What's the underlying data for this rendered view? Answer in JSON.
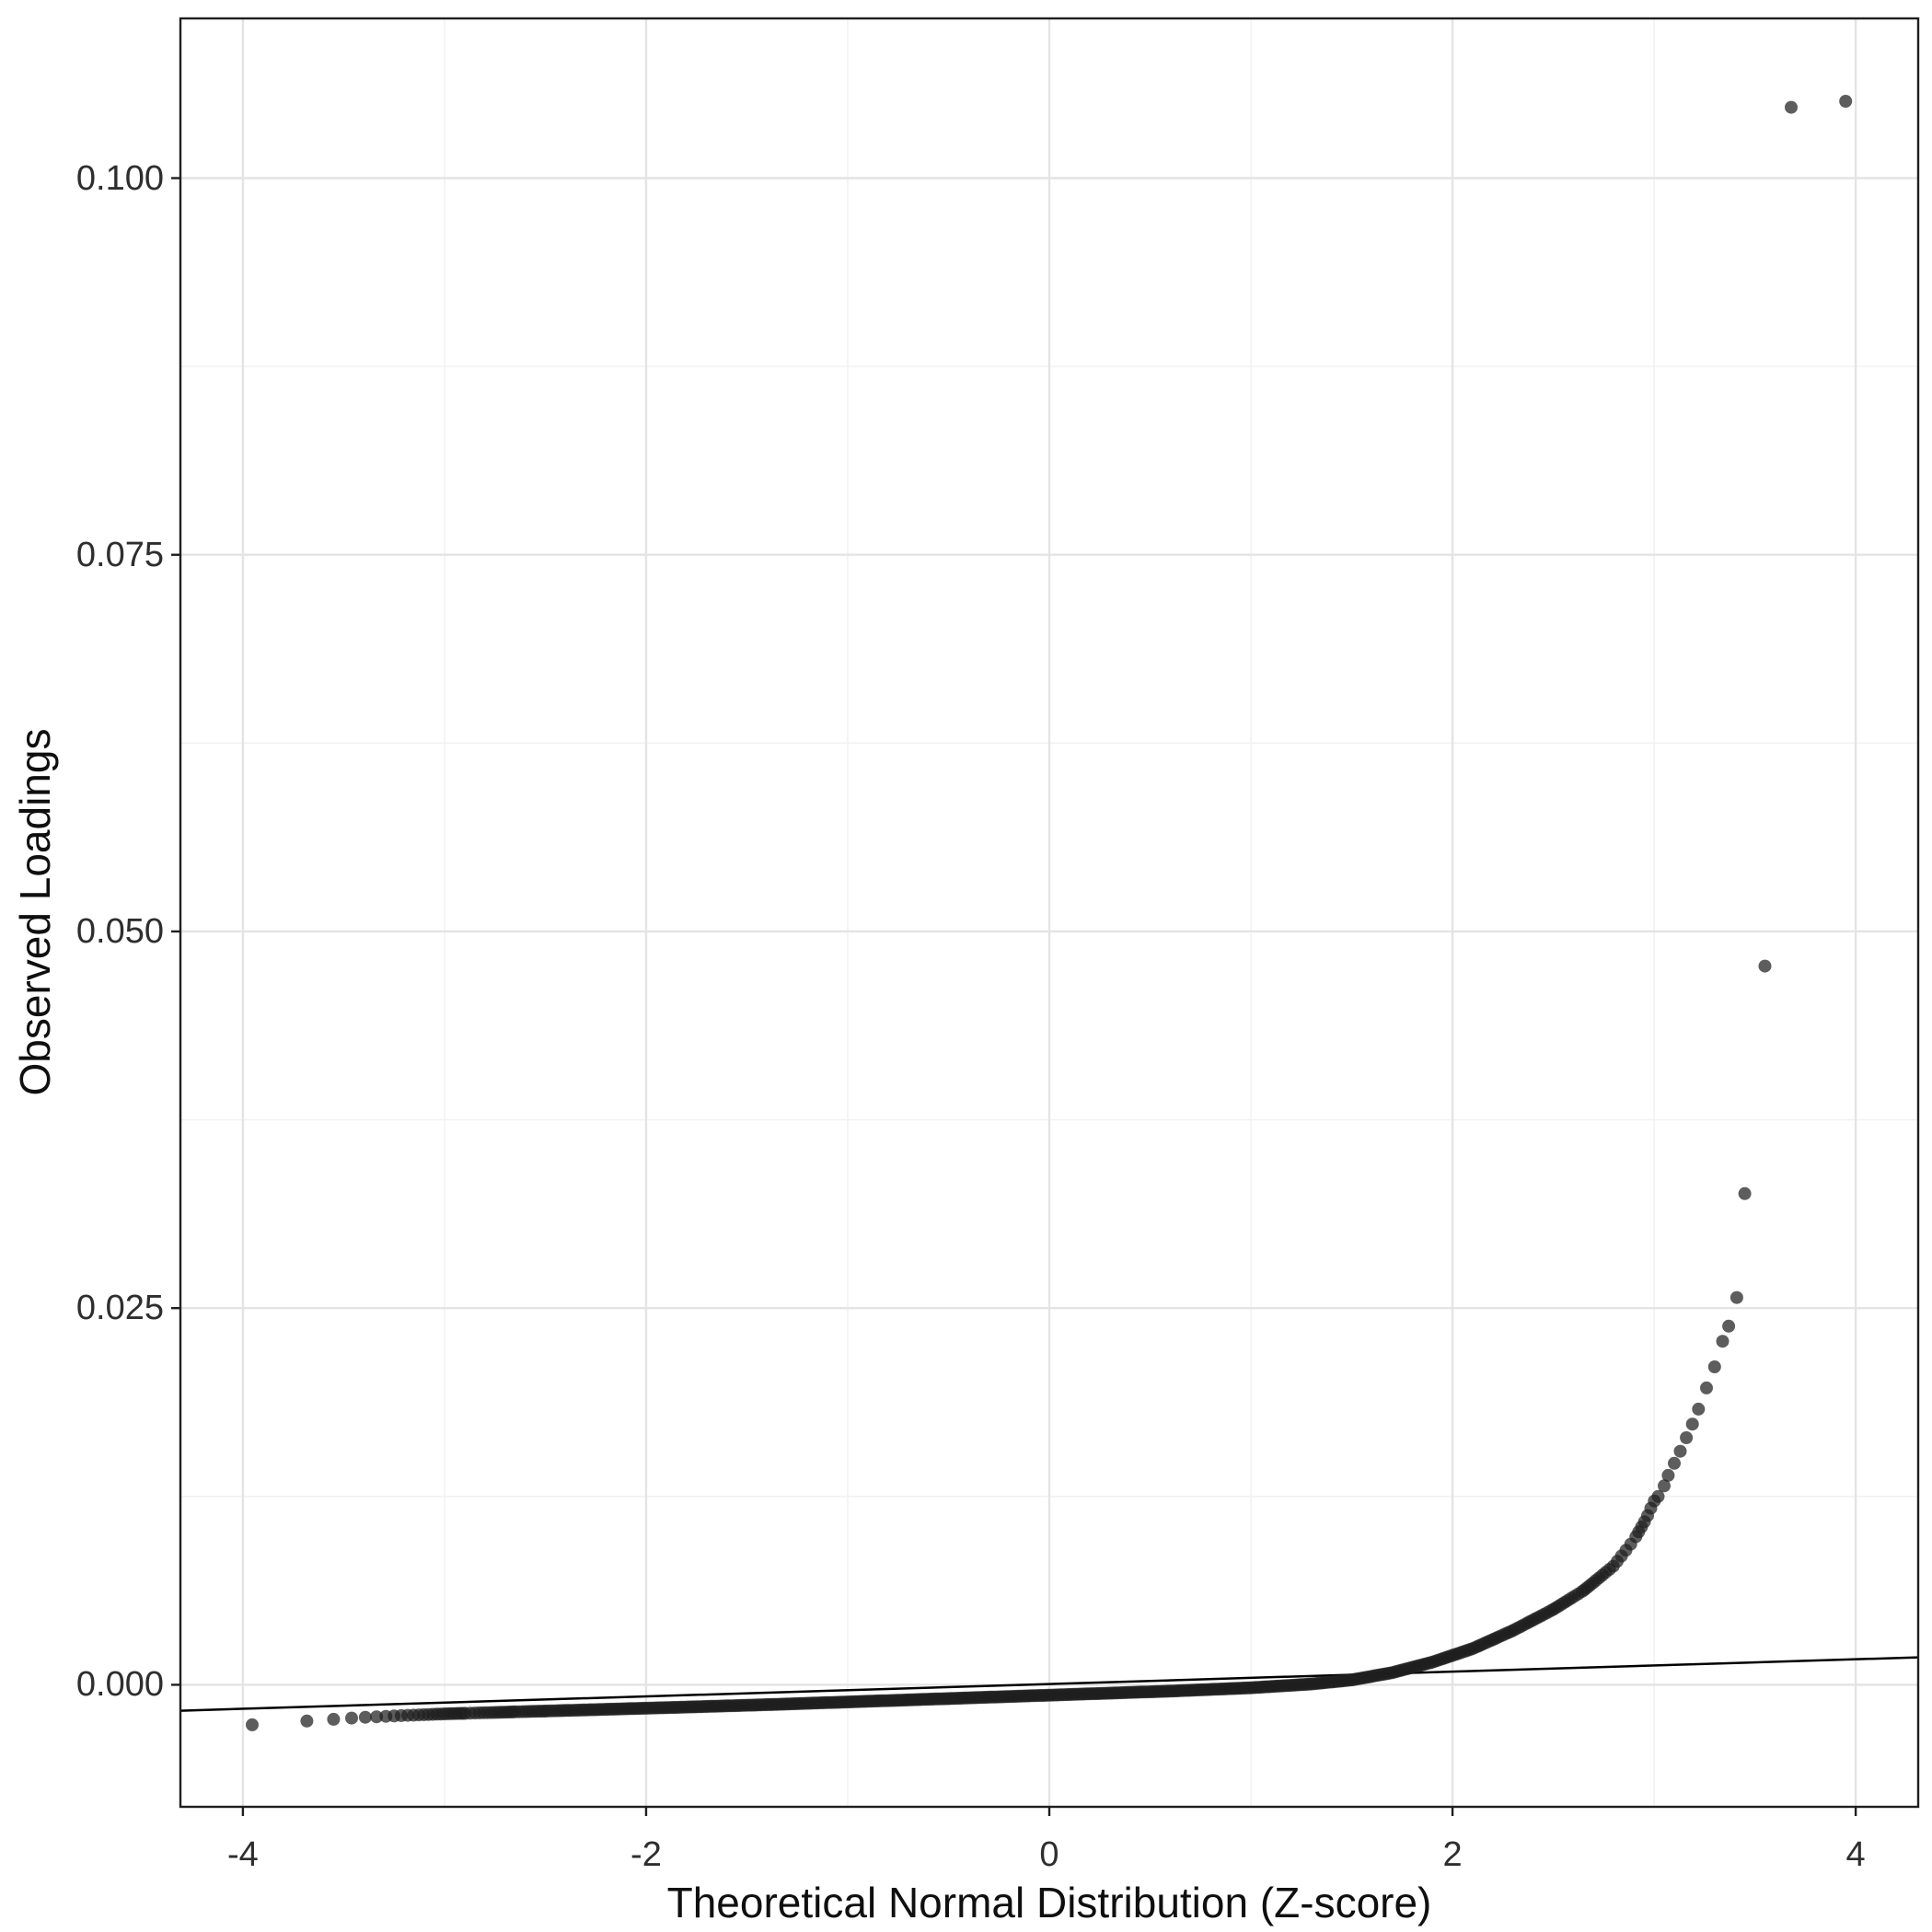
{
  "style": {
    "background": "#ffffff",
    "grid_major": "#e4e4e4",
    "grid_minor": "#f2f2f2",
    "panel_border": "#1f1f1f",
    "tick": "#1f1f1f",
    "tick_label_color": "#2e2e2e",
    "axis_title_color": "#0f0f0f"
  },
  "chart_data": {
    "type": "scatter",
    "xlabel": "Theoretical Normal Distribution (Z-score)",
    "ylabel": "Observed Loadings",
    "xlim": [
      -4.31,
      4.31
    ],
    "ylim": [
      -0.0081,
      0.1106
    ],
    "x_tick_values": [
      -4,
      -2,
      0,
      2,
      4
    ],
    "x_tick_labels": [
      "-4",
      "-2",
      "0",
      "2",
      "4"
    ],
    "y_tick_values": [
      0,
      0.025,
      0.05,
      0.075,
      0.1
    ],
    "y_tick_labels": [
      "0.000",
      "0.025",
      "0.050",
      "0.075",
      "0.100"
    ],
    "x_minor_gridlines": [
      -3,
      -1,
      1,
      3
    ],
    "y_minor_gridlines": [
      0.0125,
      0.0375,
      0.0625,
      0.0875
    ],
    "grid": true,
    "legend": "none",
    "sample_size": 13000,
    "point_style": {
      "color": "#1f1f1f",
      "opacity": 0.72,
      "radius": 7
    },
    "reference_line": {
      "x1": -4.31,
      "y1": -0.00172,
      "x2": 4.31,
      "y2": 0.00182,
      "color": "#000000",
      "width": 2.5
    },
    "qq_curve_points": [
      [
        -4.0,
        -0.0027
      ],
      [
        -3.7,
        -0.00242
      ],
      [
        -3.4,
        -0.00216
      ],
      [
        -3.2,
        -0.00204
      ],
      [
        -3.0,
        -0.00193
      ],
      [
        -2.6,
        -0.00178
      ],
      [
        -2.2,
        -0.00163
      ],
      [
        -1.8,
        -0.00148
      ],
      [
        -1.4,
        -0.00132
      ],
      [
        -1.0,
        -0.00114
      ],
      [
        -0.6,
        -0.00096
      ],
      [
        -0.2,
        -0.00078
      ],
      [
        0.2,
        -0.0006
      ],
      [
        0.6,
        -0.00042
      ],
      [
        1.0,
        -0.0002
      ],
      [
        1.3,
        5e-05
      ],
      [
        1.5,
        0.00032
      ],
      [
        1.7,
        0.0008
      ],
      [
        1.9,
        0.0015
      ],
      [
        2.1,
        0.0024
      ],
      [
        2.3,
        0.0036
      ],
      [
        2.5,
        0.005
      ],
      [
        2.65,
        0.00625
      ],
      [
        2.8,
        0.0079
      ],
      [
        2.9,
        0.0096
      ],
      [
        2.96,
        0.011
      ],
      [
        3.0,
        0.0122
      ]
    ],
    "upper_tail_points": [
      [
        3.02,
        0.0125
      ],
      [
        3.05,
        0.0132
      ],
      [
        3.07,
        0.0139
      ],
      [
        3.1,
        0.0147
      ],
      [
        3.13,
        0.0155
      ],
      [
        3.16,
        0.0164
      ],
      [
        3.19,
        0.0173
      ],
      [
        3.22,
        0.0183
      ],
      [
        3.26,
        0.0197
      ],
      [
        3.3,
        0.0211
      ],
      [
        3.34,
        0.0228
      ],
      [
        3.37,
        0.0238
      ],
      [
        3.41,
        0.0257
      ],
      [
        3.45,
        0.0326
      ],
      [
        3.55,
        0.0477
      ],
      [
        3.68,
        0.1047
      ],
      [
        3.95,
        0.1051
      ]
    ]
  }
}
